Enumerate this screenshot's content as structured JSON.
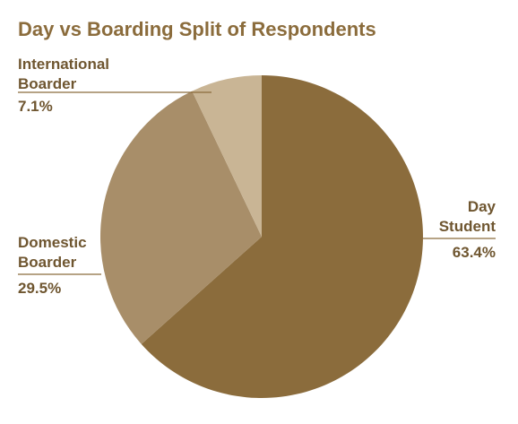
{
  "chart_data": {
    "type": "pie",
    "title": "Day vs Boarding Split of Respondents",
    "slices": [
      {
        "name": "Day Student",
        "label_lines": [
          "Day",
          "Student"
        ],
        "value": 63.4,
        "value_label": "63.4%",
        "color": "#8b6c3c"
      },
      {
        "name": "Domestic Boarder",
        "label_lines": [
          "Domestic",
          "Boarder"
        ],
        "value": 29.5,
        "value_label": "29.5%",
        "color": "#a88e69"
      },
      {
        "name": "International Boarder",
        "label_lines": [
          "International",
          "Boarder"
        ],
        "value": 7.1,
        "value_label": "7.1%",
        "color": "#c9b595"
      }
    ],
    "start": "12 o'clock",
    "direction": "clockwise"
  },
  "colors": {
    "title": "#8b6c3c",
    "label": "#6f5630",
    "leader": "#8b6c3c"
  }
}
